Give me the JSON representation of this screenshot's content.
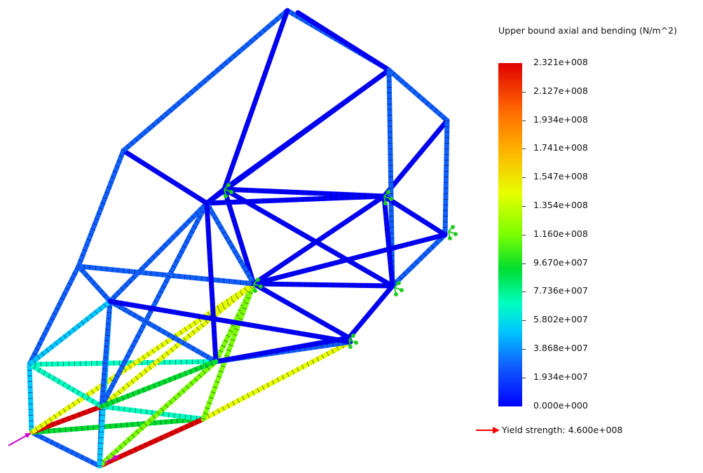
{
  "legend": {
    "title": "Upper bound axial and bending (N/m^2)",
    "ticks": [
      "2.321e+008",
      "2.127e+008",
      "1.934e+008",
      "1.741e+008",
      "1.547e+008",
      "1.354e+008",
      "1.160e+008",
      "9.670e+007",
      "7.736e+007",
      "5.802e+007",
      "3.868e+007",
      "1.934e+007",
      "0.000e+000"
    ],
    "yield": "Yield strength: 4.600e+008",
    "colors": {
      "max": "#e00000",
      "min": "#0000ff",
      "yield_arrow": "#ff0000"
    }
  },
  "frame": {
    "color_scale": [
      "#0000ff",
      "#1060ff",
      "#00c8ff",
      "#00ffc0",
      "#00dd30",
      "#7aff00",
      "#e6ff00",
      "#ffb000",
      "#ff6a00",
      "#e00000"
    ],
    "load_arrow_color": "#cc00cc",
    "fixture_color": "#22cc22"
  }
}
